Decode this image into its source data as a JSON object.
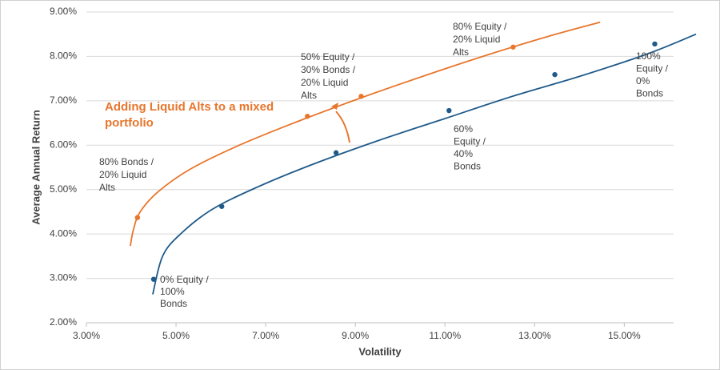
{
  "chart_data": {
    "type": "scatter",
    "xlabel": "Volatility",
    "ylabel": "Average Annual Return",
    "xlim": [
      3,
      16.1
    ],
    "ylim": [
      2,
      9
    ],
    "xticks": [
      {
        "value": 3,
        "label": "3.00%"
      },
      {
        "value": 5,
        "label": "5.00%"
      },
      {
        "value": 7,
        "label": "7.00%"
      },
      {
        "value": 9,
        "label": "9.00%"
      },
      {
        "value": 11,
        "label": "11.00%"
      },
      {
        "value": 13,
        "label": "13.00%"
      },
      {
        "value": 15,
        "label": "15.00%"
      }
    ],
    "yticks": [
      {
        "value": 2,
        "label": "2.00%"
      },
      {
        "value": 3,
        "label": "3.00%"
      },
      {
        "value": 4,
        "label": "4.00%"
      },
      {
        "value": 5,
        "label": "5.00%"
      },
      {
        "value": 6,
        "label": "6.00%"
      },
      {
        "value": 7,
        "label": "7.00%"
      },
      {
        "value": 8,
        "label": "8.00%"
      },
      {
        "value": 9,
        "label": "9.00%"
      }
    ],
    "grid": true,
    "series": [
      {
        "color": "#1f5a8a",
        "mode": "line",
        "x": [
          4.48,
          4.7,
          5.1,
          5.8,
          6.8,
          8.0,
          9.5,
          11.0,
          12.5,
          14.0,
          15.5,
          16.6
        ],
        "values": [
          2.64,
          3.5,
          4.0,
          4.55,
          5.05,
          5.55,
          6.1,
          6.6,
          7.1,
          7.55,
          8.05,
          8.5
        ]
      },
      {
        "color": "#1f5a8a",
        "mode": "markers",
        "x": [
          4.5,
          6.02,
          8.57,
          11.09,
          13.45,
          15.68
        ],
        "values": [
          2.98,
          4.62,
          5.83,
          6.78,
          7.59,
          8.28
        ]
      },
      {
        "color": "#e8762d",
        "mode": "line",
        "x": [
          3.98,
          4.05,
          4.2,
          4.6,
          5.3,
          6.3,
          7.5,
          9.0,
          10.5,
          12.0,
          13.3,
          14.46
        ],
        "values": [
          3.73,
          4.1,
          4.5,
          4.95,
          5.45,
          5.95,
          6.45,
          7.02,
          7.55,
          8.05,
          8.45,
          8.77
        ]
      },
      {
        "color": "#e8762d",
        "mode": "markers",
        "x": [
          4.14,
          7.93,
          9.13,
          12.52
        ],
        "values": [
          4.37,
          6.65,
          7.1,
          8.21
        ]
      }
    ],
    "annotations": [
      {
        "lines": [
          "80% Equity /",
          "20% Liquid",
          "Alts"
        ]
      },
      {
        "lines": [
          "50% Equity /",
          "30% Bonds /",
          "20% Liquid",
          "Alts"
        ]
      },
      {
        "lines": [
          "80% Bonds /",
          "20% Liquid",
          "Alts"
        ]
      },
      {
        "lines": [
          "0% Equity /",
          "100%",
          "Bonds"
        ]
      },
      {
        "lines": [
          "60%",
          "Equity /",
          "40%",
          "Bonds"
        ]
      },
      {
        "lines": [
          "100%",
          "Equity /",
          "0%",
          "Bonds"
        ]
      },
      {
        "lines": [
          "Adding Liquid Alts to a mixed",
          "portfolio"
        ],
        "color": "#e8762d"
      }
    ]
  }
}
